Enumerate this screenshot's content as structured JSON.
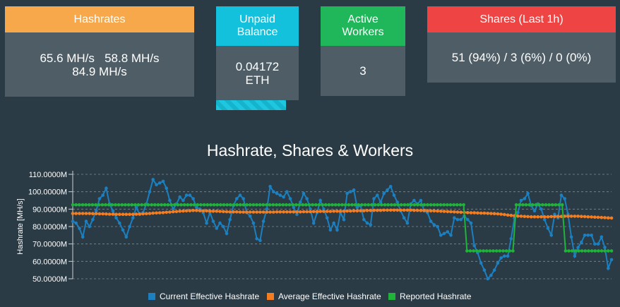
{
  "cards": {
    "hashrates": {
      "title": "Hashrates",
      "line1": "65.6 MH/s   58.8 MH/s",
      "line2": "84.9 MH/s"
    },
    "unpaid": {
      "title": "Unpaid Balance",
      "value": "0.04172",
      "unit": "ETH",
      "progress": 0.85
    },
    "workers": {
      "title": "Active Workers",
      "value": "3"
    },
    "shares": {
      "title": "Shares (Last 1h)",
      "value": "51 (94%) / 3 (6%) / 0 (0%)"
    }
  },
  "colors": {
    "background": "#2a3b45",
    "card_body": "#4f5e66",
    "hashrates": "#f6a84a",
    "unpaid": "#13c1dc",
    "workers": "#1fb75a",
    "shares": "#ee4444"
  },
  "chart_data": {
    "type": "line",
    "title": "Hashrate, Shares & Workers",
    "ylabel": "Hashrate [MH/s]",
    "ylim": [
      50,
      110
    ],
    "yticks": [
      "50.0000M",
      "60.0000M",
      "70.0000M",
      "80.0000M",
      "90.0000M",
      "100.0000M",
      "110.0000M"
    ],
    "grid": true,
    "legend_position": "bottom",
    "series": [
      {
        "name": "Current Effective Hashrate",
        "color": "#1b7fc0",
        "values": [
          83,
          82,
          79,
          74,
          83,
          80,
          84,
          89,
          96,
          98,
          102,
          93,
          89,
          85,
          82,
          78,
          74,
          80,
          85,
          91,
          87,
          88,
          93,
          100,
          107,
          104,
          105,
          106,
          102,
          95,
          90,
          93,
          97,
          95,
          98,
          98,
          96,
          91,
          90,
          88,
          82,
          88,
          83,
          79,
          82,
          80,
          76,
          84,
          92,
          96,
          98,
          96,
          88,
          86,
          82,
          73,
          72,
          83,
          90,
          103,
          100,
          99,
          98,
          97,
          100,
          96,
          91,
          87,
          94,
          99,
          96,
          90,
          82,
          88,
          95,
          90,
          85,
          78,
          82,
          78,
          88,
          84,
          99,
          100,
          101,
          91,
          92,
          84,
          82,
          81,
          96,
          98,
          94,
          99,
          101,
          103,
          98,
          94,
          89,
          85,
          82,
          93,
          95,
          93,
          95,
          89,
          88,
          83,
          81,
          80,
          75,
          76,
          77,
          75,
          85,
          84,
          84,
          86,
          84,
          82,
          69,
          65,
          59,
          55,
          50,
          52,
          55,
          59,
          62,
          63,
          63,
          73,
          85,
          88,
          95,
          96,
          99,
          92,
          89,
          93,
          90,
          84,
          79,
          75,
          87,
          85,
          98,
          96,
          87,
          74,
          63,
          68,
          71,
          75,
          75,
          75,
          70,
          70,
          74,
          68,
          56,
          61
        ]
      },
      {
        "name": "Average Effective Hashrate",
        "color": "#f57c1f",
        "values": [
          87.5,
          87.5,
          87.5,
          87.5,
          87.5,
          87.5,
          87.4,
          87.4,
          87.3,
          87.3,
          87.2,
          87.1,
          87.1,
          87.0,
          87.0,
          87.0,
          87.0,
          87.0,
          87.0,
          87.1,
          87.2,
          87.3,
          87.4,
          87.5,
          87.7,
          87.8,
          87.9,
          88.0,
          88.2,
          88.3,
          88.5,
          88.6,
          88.8,
          88.9,
          89.0,
          89.1,
          89.2,
          89.2,
          89.1,
          89.0,
          89.0,
          88.9,
          88.8,
          88.8,
          88.7,
          88.6,
          88.5,
          88.4,
          88.4,
          88.4,
          88.3,
          88.3,
          88.3,
          88.3,
          88.3,
          88.3,
          88.3,
          88.3,
          88.3,
          88.3,
          88.3,
          88.4,
          88.4,
          88.4,
          88.4,
          88.4,
          88.4,
          88.4,
          88.4,
          88.5,
          88.5,
          88.5,
          88.6,
          88.6,
          88.7,
          88.7,
          88.7,
          88.7,
          88.8,
          88.8,
          88.8,
          88.8,
          88.9,
          88.9,
          89.0,
          89.0,
          89.1,
          89.1,
          89.2,
          89.2,
          89.3,
          89.3,
          89.3,
          89.4,
          89.4,
          89.4,
          89.4,
          89.4,
          89.4,
          89.4,
          89.4,
          89.4,
          89.3,
          89.3,
          89.2,
          89.2,
          89.1,
          89.0,
          89.0,
          88.9,
          88.8,
          88.7,
          88.6,
          88.5,
          88.4,
          88.3,
          88.2,
          88.1,
          88.0,
          87.9,
          87.9,
          87.8,
          87.7,
          87.7,
          87.6,
          87.5,
          87.4,
          87.3,
          87.1,
          86.9,
          86.6,
          86.4,
          86.2,
          86.0,
          85.9,
          85.8,
          85.7,
          85.6,
          85.6,
          85.6,
          85.6,
          85.6,
          85.6,
          85.7,
          85.7,
          85.8,
          85.8,
          85.9,
          85.9,
          85.9,
          85.9,
          85.9,
          85.8,
          85.7,
          85.6,
          85.5,
          85.4,
          85.3,
          85.2,
          85.1,
          85.0,
          84.9
        ]
      },
      {
        "name": "Reported Hashrate",
        "color": "#1fb33a",
        "values": [
          92.5,
          92.5,
          92.5,
          92.5,
          92.5,
          92.5,
          92.5,
          92.5,
          92.5,
          92.5,
          92.5,
          92.5,
          92.5,
          92.5,
          92.5,
          92.5,
          92.5,
          92.5,
          92.5,
          92.5,
          92.5,
          92.5,
          92.5,
          92.5,
          92.5,
          92.5,
          92.5,
          92.5,
          92.5,
          92.5,
          92.5,
          92.5,
          92.5,
          92.5,
          92.5,
          92.5,
          92.5,
          92.5,
          92.5,
          92.5,
          92.5,
          92.5,
          92.5,
          92.5,
          92.5,
          92.5,
          92.5,
          92.5,
          92.5,
          92.5,
          92.5,
          92.5,
          92.5,
          92.5,
          92.5,
          92.5,
          92.5,
          92.5,
          92.5,
          92.5,
          92.5,
          92.5,
          92.5,
          92.5,
          92.5,
          92.5,
          92.5,
          92.5,
          92.5,
          92.5,
          92.5,
          92.5,
          92.5,
          92.5,
          92.5,
          92.5,
          92.5,
          92.5,
          92.5,
          92.5,
          92.5,
          92.5,
          92.5,
          92.5,
          92.5,
          92.5,
          92.5,
          92.5,
          92.5,
          92.5,
          92.5,
          92.5,
          92.5,
          92.5,
          92.5,
          92.5,
          92.5,
          92.5,
          92.5,
          92.5,
          92.5,
          92.5,
          92.5,
          92.5,
          92.5,
          92.5,
          92.5,
          92.5,
          92.5,
          92.5,
          92.5,
          92.5,
          92.5,
          92.5,
          92.5,
          92.5,
          92.5,
          92.5,
          92.5,
          92.5,
          66,
          66,
          66,
          66,
          66,
          66,
          66,
          66,
          66,
          66,
          66,
          66,
          66,
          66,
          66,
          92.5,
          92.5,
          92.5,
          92.5,
          92.5,
          92.5,
          92.5,
          92.5,
          92.5,
          92.5,
          92.5,
          92.5,
          92.5,
          92.5,
          92.5,
          66,
          66,
          66,
          66,
          66,
          66,
          66,
          66,
          66,
          66,
          66,
          66,
          66,
          66,
          66
        ]
      }
    ]
  }
}
